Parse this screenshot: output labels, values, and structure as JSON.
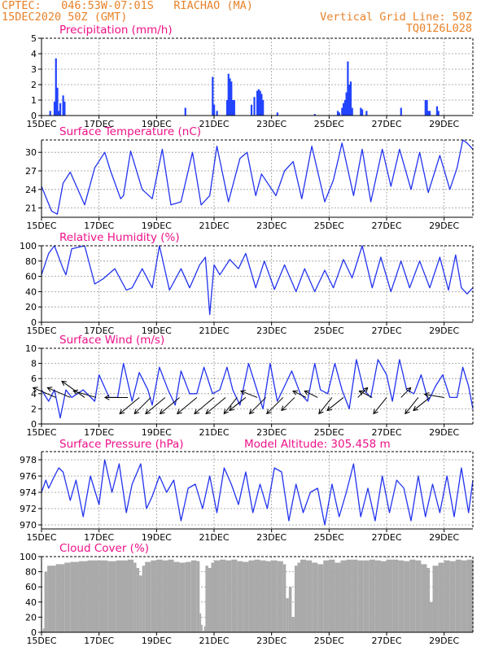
{
  "header": {
    "line1_left": "CPTEC:   046:53W-07:01S   RIACHAO (MA)",
    "line2_left": "15DEC2020 50Z (GMT)",
    "line1_right": "Vertical Grid Line: 50Z",
    "line2_right": "TQ0126L028"
  },
  "colors": {
    "header": "#e8822a",
    "title": "#ee1188",
    "line": "#2233ee",
    "bar": "#2244ff",
    "cloud": "#aaaaaa",
    "wind_arrow": "#000000"
  },
  "x_axis": {
    "ticks": [
      "15DEC",
      "17DEC",
      "19DEC",
      "21DEC",
      "23DEC",
      "25DEC",
      "27DEC",
      "29DEC"
    ],
    "tick_days": [
      0,
      2,
      4,
      6,
      8,
      10,
      12,
      14
    ],
    "range_days": [
      0,
      15
    ]
  },
  "chart_data": [
    {
      "type": "bar",
      "title": "Precipitation (mm/h)",
      "ylim": [
        0,
        5
      ],
      "yticks": [
        0,
        1,
        2,
        3,
        4,
        5
      ],
      "x": [
        0.3,
        0.45,
        0.5,
        0.55,
        0.6,
        0.65,
        0.75,
        0.8,
        5.0,
        5.95,
        6.0,
        6.1,
        6.45,
        6.5,
        6.55,
        6.6,
        6.65,
        6.7,
        7.3,
        7.4,
        7.5,
        7.55,
        7.6,
        7.65,
        7.7,
        8.2,
        9.5,
        10.3,
        10.35,
        10.45,
        10.5,
        10.55,
        10.6,
        10.65,
        10.7,
        10.75,
        10.8,
        11.1,
        11.15,
        11.3,
        12.5,
        13.35,
        13.4,
        13.45,
        13.5,
        13.75,
        13.8
      ],
      "values": [
        0.3,
        0.9,
        3.7,
        1.8,
        0.3,
        0.8,
        1.3,
        0.9,
        0.5,
        2.5,
        0.7,
        0.3,
        1.0,
        2.7,
        2.4,
        2.2,
        1.0,
        1.0,
        0.7,
        1.2,
        1.6,
        1.7,
        1.6,
        1.4,
        1.0,
        0.2,
        0.1,
        0.3,
        0.2,
        0.5,
        0.8,
        1.0,
        1.5,
        3.5,
        2.0,
        2.2,
        0.5,
        0.5,
        0.4,
        0.3,
        0.5,
        1.0,
        1.0,
        0.3,
        0.3,
        0.6,
        0.3
      ]
    },
    {
      "type": "line",
      "title": "Surface Temperature (nC)",
      "ylim": [
        19.5,
        32
      ],
      "yticks": [
        21,
        24,
        27,
        30
      ],
      "x": [
        0.0,
        0.35,
        0.55,
        0.75,
        1.0,
        1.5,
        1.85,
        2.2,
        2.4,
        2.75,
        2.85,
        3.1,
        3.5,
        3.85,
        4.2,
        4.5,
        4.85,
        5.25,
        5.55,
        5.85,
        6.1,
        6.5,
        6.9,
        7.15,
        7.45,
        7.65,
        8.15,
        8.45,
        8.75,
        9.05,
        9.4,
        9.85,
        10.15,
        10.45,
        10.85,
        11.15,
        11.45,
        11.85,
        12.15,
        12.45,
        12.85,
        13.15,
        13.45,
        13.85,
        14.2,
        14.45,
        14.65,
        14.8,
        15.0
      ],
      "values": [
        24.5,
        20.5,
        20.0,
        25.0,
        26.8,
        21.5,
        27.5,
        30.0,
        27.0,
        22.5,
        23.0,
        30.2,
        24.0,
        22.5,
        30.5,
        21.5,
        22.0,
        30.0,
        21.5,
        23.0,
        31.0,
        22.0,
        29.0,
        30.0,
        23.0,
        26.5,
        23.0,
        27.0,
        28.5,
        22.5,
        31.0,
        22.0,
        25.5,
        31.5,
        23.0,
        30.5,
        22.0,
        30.5,
        24.5,
        30.5,
        24.0,
        30.0,
        23.5,
        29.5,
        24.0,
        27.5,
        32.0,
        31.5,
        30.5
      ]
    },
    {
      "type": "line",
      "title": "Relative Humidity (%)",
      "ylim": [
        0,
        100
      ],
      "yticks": [
        0,
        20,
        40,
        60,
        80,
        100
      ],
      "x": [
        0.0,
        0.25,
        0.45,
        0.75,
        0.85,
        1.05,
        1.5,
        1.85,
        2.15,
        2.55,
        2.95,
        3.15,
        3.5,
        3.85,
        4.1,
        4.45,
        4.85,
        5.15,
        5.5,
        5.7,
        5.85,
        6.0,
        6.2,
        6.55,
        6.85,
        7.1,
        7.45,
        7.75,
        8.1,
        8.45,
        8.85,
        9.15,
        9.5,
        9.85,
        10.15,
        10.5,
        10.8,
        11.15,
        11.5,
        11.8,
        12.15,
        12.5,
        12.8,
        13.15,
        13.5,
        13.85,
        14.15,
        14.4,
        14.6,
        14.8,
        15.0
      ],
      "values": [
        62.0,
        90.0,
        100.0,
        70.0,
        62.0,
        96.0,
        100.0,
        50.0,
        57.0,
        70.0,
        42.0,
        45.0,
        70.0,
        45.0,
        100.0,
        42.0,
        70.0,
        45.0,
        75.0,
        85.0,
        10.0,
        75.0,
        62.0,
        82.0,
        70.0,
        90.0,
        45.0,
        80.0,
        43.0,
        75.0,
        40.0,
        70.0,
        40.0,
        68.0,
        45.0,
        82.0,
        58.0,
        100.0,
        45.0,
        85.0,
        40.0,
        80.0,
        45.0,
        80.0,
        45.0,
        85.0,
        42.0,
        88.0,
        45.0,
        37.0,
        45.0
      ]
    },
    {
      "type": "line",
      "title": "Surface Wind (m/s)",
      "ylim": [
        0,
        10
      ],
      "yticks": [
        0,
        2,
        4,
        6,
        8,
        10
      ],
      "x": [
        0.0,
        0.25,
        0.45,
        0.65,
        0.85,
        1.05,
        1.45,
        1.85,
        2.0,
        2.35,
        2.65,
        2.85,
        3.15,
        3.4,
        3.7,
        3.85,
        4.1,
        4.4,
        4.65,
        4.85,
        5.15,
        5.4,
        5.65,
        5.95,
        6.2,
        6.45,
        6.65,
        6.9,
        7.2,
        7.45,
        7.7,
        7.95,
        8.2,
        8.45,
        8.7,
        9.0,
        9.25,
        9.5,
        9.7,
        9.95,
        10.2,
        10.45,
        10.7,
        10.95,
        11.2,
        11.45,
        11.7,
        12.0,
        12.2,
        12.45,
        12.7,
        12.95,
        13.2,
        13.45,
        13.7,
        13.95,
        14.2,
        14.45,
        14.65,
        14.85,
        15.0
      ],
      "values": [
        4.5,
        3.0,
        4.5,
        0.8,
        4.5,
        3.5,
        4.5,
        3.0,
        6.5,
        3.5,
        3.5,
        8.0,
        3.0,
        6.8,
        4.5,
        2.5,
        7.5,
        4.5,
        2.5,
        7.0,
        4.0,
        4.0,
        7.5,
        4.0,
        4.5,
        7.5,
        4.5,
        2.5,
        8.0,
        5.0,
        2.0,
        8.0,
        3.0,
        5.0,
        7.0,
        4.0,
        3.0,
        8.0,
        4.5,
        4.0,
        8.0,
        4.5,
        2.0,
        8.5,
        4.5,
        3.5,
        8.5,
        6.5,
        3.0,
        8.5,
        4.5,
        4.0,
        6.5,
        3.0,
        5.0,
        6.5,
        3.5,
        3.5,
        7.5,
        5.0,
        2.0
      ],
      "vectors": {
        "x": [
          0.5,
          1.0,
          1.5,
          1.9,
          3.0,
          3.4,
          3.8,
          4.3,
          4.8,
          5.4,
          6.0,
          6.4,
          6.8,
          7.1,
          7.5,
          7.8,
          8.4,
          8.8,
          9.2,
          9.6,
          10.1,
          10.5,
          11.0,
          11.5,
          12.0,
          12.5,
          13.1,
          13.5,
          14.0
        ],
        "u": [
          -0.7,
          -0.7,
          -0.7,
          -0.7,
          -0.7,
          -0.6,
          -0.5,
          -0.6,
          -0.6,
          -0.6,
          -0.6,
          -0.6,
          -0.4,
          -0.5,
          -0.5,
          -0.5,
          -0.5,
          -0.4,
          -0.4,
          -0.4,
          -0.4,
          -0.5,
          0.3,
          -0.4,
          -0.4,
          0.3,
          -0.4,
          -0.5,
          -0.6
        ],
        "v": [
          0.3,
          0.3,
          0.5,
          0.2,
          0.0,
          -0.5,
          -0.5,
          -0.5,
          -0.5,
          -0.5,
          -0.5,
          -0.5,
          -0.5,
          -0.4,
          0.2,
          -0.5,
          -0.5,
          -0.4,
          0.2,
          0.2,
          -0.5,
          -0.4,
          0.3,
          0.2,
          -0.5,
          0.3,
          -0.5,
          -0.4,
          0.1
        ]
      }
    },
    {
      "type": "line",
      "title": "Surface Pressure (hPa)",
      "subtitle": "Model Altitude: 305.458  m",
      "ylim": [
        969.5,
        979
      ],
      "yticks": [
        970,
        972,
        974,
        976,
        978
      ],
      "x": [
        0.0,
        0.15,
        0.25,
        0.45,
        0.6,
        0.75,
        1.0,
        1.2,
        1.45,
        1.7,
        2.0,
        2.2,
        2.45,
        2.7,
        2.95,
        3.15,
        3.45,
        3.65,
        3.85,
        4.1,
        4.35,
        4.6,
        4.85,
        5.1,
        5.35,
        5.6,
        5.85,
        6.1,
        6.35,
        6.6,
        6.85,
        7.1,
        7.35,
        7.6,
        7.85,
        8.1,
        8.35,
        8.6,
        8.85,
        9.1,
        9.35,
        9.6,
        9.85,
        10.1,
        10.35,
        10.6,
        10.85,
        11.1,
        11.35,
        11.6,
        11.85,
        12.1,
        12.35,
        12.6,
        12.85,
        13.1,
        13.35,
        13.6,
        13.85,
        14.1,
        14.35,
        14.6,
        14.85,
        15.0
      ],
      "values": [
        974.0,
        975.5,
        974.5,
        976.0,
        977.0,
        976.5,
        973.0,
        975.5,
        971.0,
        976.0,
        972.5,
        978.0,
        974.0,
        977.5,
        971.5,
        975.0,
        977.5,
        972.0,
        973.5,
        976.0,
        974.0,
        975.5,
        970.5,
        974.5,
        975.0,
        972.0,
        976.0,
        971.5,
        977.0,
        975.0,
        972.5,
        976.5,
        971.5,
        975.0,
        972.0,
        977.0,
        976.5,
        970.5,
        975.0,
        971.5,
        974.0,
        974.5,
        970.0,
        975.0,
        971.0,
        974.0,
        977.5,
        971.0,
        974.5,
        970.5,
        976.0,
        971.5,
        975.5,
        974.5,
        970.5,
        976.0,
        971.0,
        975.0,
        971.5,
        976.0,
        971.0,
        977.0,
        971.5,
        975.5
      ]
    },
    {
      "type": "bar",
      "title": "Cloud Cover (%)",
      "ylim": [
        0,
        100
      ],
      "yticks": [
        0,
        20,
        40,
        60,
        80,
        100
      ],
      "x": [
        0.0,
        0.05,
        0.1,
        0.2,
        0.5,
        0.8,
        1.0,
        1.3,
        1.6,
        2.0,
        2.3,
        2.6,
        3.0,
        3.2,
        3.3,
        3.4,
        3.5,
        3.6,
        3.8,
        4.0,
        4.2,
        4.4,
        4.6,
        4.8,
        5.0,
        5.2,
        5.4,
        5.5,
        5.55,
        5.6,
        5.65,
        5.7,
        5.8,
        5.9,
        6.0,
        6.2,
        6.4,
        6.6,
        6.8,
        7.0,
        7.2,
        7.4,
        7.6,
        7.8,
        8.0,
        8.2,
        8.4,
        8.5,
        8.6,
        8.7,
        8.8,
        8.9,
        9.0,
        9.2,
        9.4,
        9.6,
        9.8,
        10.0,
        10.2,
        10.4,
        10.6,
        10.8,
        11.0,
        11.2,
        11.4,
        11.6,
        11.8,
        12.0,
        12.2,
        12.4,
        12.6,
        12.8,
        13.0,
        13.2,
        13.4,
        13.5,
        13.6,
        13.8,
        14.0,
        14.2,
        14.4,
        14.6,
        14.8,
        15.0
      ],
      "values": [
        2,
        5,
        80,
        88,
        90,
        92,
        93,
        94,
        95,
        95,
        94,
        95,
        96,
        92,
        85,
        75,
        88,
        93,
        95,
        96,
        95,
        96,
        93,
        92,
        93,
        95,
        94,
        25,
        10,
        2,
        8,
        88,
        85,
        92,
        95,
        96,
        95,
        96,
        94,
        93,
        95,
        96,
        95,
        94,
        95,
        94,
        90,
        45,
        60,
        20,
        88,
        92,
        96,
        95,
        92,
        90,
        95,
        96,
        92,
        95,
        96,
        96,
        95,
        95,
        96,
        95,
        94,
        96,
        96,
        95,
        94,
        96,
        95,
        90,
        85,
        40,
        88,
        92,
        95,
        94,
        96,
        95,
        96,
        96
      ]
    }
  ]
}
